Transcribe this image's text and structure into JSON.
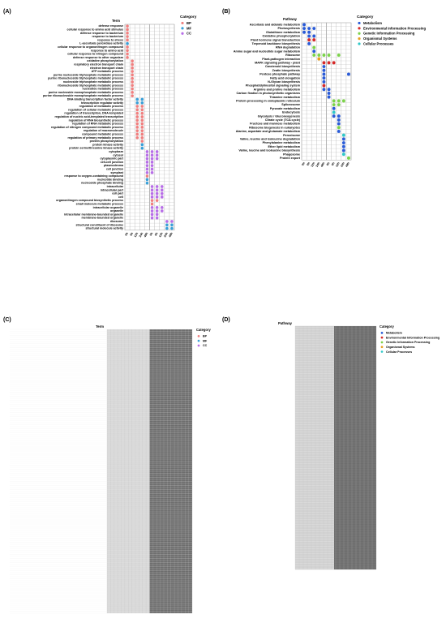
{
  "figure": {
    "panels": [
      "(A)",
      "(B)",
      "(C)",
      "(D)"
    ]
  },
  "legend_titles": {
    "A": "Category",
    "B": "Category",
    "C": "Category",
    "D": "Category"
  },
  "legend_A": [
    {
      "label": "BP",
      "color": "#f08080"
    },
    {
      "label": "MF",
      "color": "#3aa0d8"
    },
    {
      "label": "CC",
      "color": "#b86ee8"
    }
  ],
  "legend_B": [
    {
      "label": "Metabolism",
      "color": "#2a5bd7"
    },
    {
      "label": "Environmental Information Processing",
      "color": "#d62a2a"
    },
    {
      "label": "Genetic Information Processing",
      "color": "#7cd34a"
    },
    {
      "label": "Organismal Systems",
      "color": "#e8a020"
    },
    {
      "label": "Cellular Processes",
      "color": "#30c8c8"
    }
  ],
  "chart_data": [
    {
      "panel": "(A)",
      "type": "scatter",
      "title": "Term",
      "x_categories": [
        "0h",
        "6h",
        "12h",
        "24h",
        "48h",
        "0h",
        "6h",
        "12h",
        "24h",
        "48h"
      ],
      "y_categories": [
        "defense response",
        "cellular response to amino acid stimulus",
        "defense response to bacterium",
        "response to bacterium",
        "response to stress",
        "L-ascorbate peroxidase activity",
        "cellular response to organonitrogen compound",
        "response to amino acid",
        "cellular response to nitrogen compound",
        "defense response to other organism",
        "oxidative phosphorylation",
        "respiratory electron transport chain",
        "electron transport chain",
        "ATP metabolic process",
        "purine nucleoside triphosphate metabolic process",
        "purine ribonucleoside triphosphate metabolic process",
        "nucleoside triphosphate metabolic process",
        "ribonucleoside triphosphate metabolic process",
        "nucleotide metabolic process",
        "purine nucleoside monophosphate metabolic process",
        "purine ribonucleoside monophosphate metabolic process",
        "DNA-binding transcription factor activity",
        "transcription regulator activity",
        "regulation of metabolic process",
        "regulation of cellular metabolic process",
        "regulation of transcription, DNA-templated",
        "regulation of nucleic acid-templated transcription",
        "regulation of RNA biosynthetic process",
        "regulation of RNA metabolic process",
        "regulation of nitrogen compound metabolic process",
        "regulation of macromolecule",
        "compound metabolic process",
        "regulation of primary metabolic process",
        "protein phosphorylation",
        "protein kinase activity",
        "protein serine/threonine kinase activity",
        "cytoplasm",
        "cytosol",
        "cytoplasmic part",
        "cell-cell junction",
        "plasmodesma",
        "cell junction",
        "symplast",
        "response to oxygen-containing compound",
        "nucleotide binding",
        "nucleoside phosphate binding",
        "intracellular",
        "intracellular part",
        "cell part",
        "cell",
        "organonitrogen compound biosynthetic process",
        "small molecule metabolic process",
        "intracellular organelle",
        "organelle",
        "intracellular membrane-bounded organelle",
        "membrane-bounded organelle",
        "ribosome",
        "structural constituent of ribosome",
        "structural molecule activity"
      ],
      "legend": [
        "BP",
        "MF",
        "CC"
      ],
      "points": [
        [
          0,
          0,
          "BP"
        ],
        [
          0,
          1,
          "BP"
        ],
        [
          0,
          2,
          "BP"
        ],
        [
          0,
          3,
          "BP"
        ],
        [
          0,
          4,
          "BP"
        ],
        [
          0,
          5,
          "MF"
        ],
        [
          0,
          6,
          "BP"
        ],
        [
          0,
          7,
          "BP"
        ],
        [
          0,
          8,
          "BP"
        ],
        [
          0,
          9,
          "BP"
        ],
        [
          1,
          10,
          "BP"
        ],
        [
          1,
          11,
          "BP"
        ],
        [
          1,
          12,
          "BP"
        ],
        [
          1,
          13,
          "BP"
        ],
        [
          1,
          14,
          "BP"
        ],
        [
          1,
          15,
          "BP"
        ],
        [
          1,
          16,
          "BP"
        ],
        [
          1,
          17,
          "BP"
        ],
        [
          1,
          18,
          "BP"
        ],
        [
          1,
          19,
          "BP"
        ],
        [
          1,
          20,
          "BP"
        ],
        [
          2,
          21,
          "MF"
        ],
        [
          2,
          22,
          "MF"
        ],
        [
          3,
          21,
          "MF"
        ],
        [
          3,
          22,
          "MF"
        ],
        [
          2,
          23,
          "BP"
        ],
        [
          2,
          24,
          "BP"
        ],
        [
          2,
          25,
          "BP"
        ],
        [
          2,
          26,
          "BP"
        ],
        [
          2,
          27,
          "BP"
        ],
        [
          2,
          28,
          "BP"
        ],
        [
          2,
          29,
          "BP"
        ],
        [
          2,
          30,
          "BP"
        ],
        [
          2,
          31,
          "BP"
        ],
        [
          2,
          32,
          "BP"
        ],
        [
          3,
          23,
          "BP"
        ],
        [
          3,
          24,
          "BP"
        ],
        [
          3,
          25,
          "BP"
        ],
        [
          3,
          26,
          "BP"
        ],
        [
          3,
          27,
          "BP"
        ],
        [
          3,
          28,
          "BP"
        ],
        [
          3,
          29,
          "BP"
        ],
        [
          3,
          30,
          "BP"
        ],
        [
          3,
          31,
          "BP"
        ],
        [
          3,
          32,
          "BP"
        ],
        [
          3,
          33,
          "BP"
        ],
        [
          3,
          34,
          "MF"
        ],
        [
          3,
          35,
          "MF"
        ],
        [
          4,
          36,
          "CC"
        ],
        [
          4,
          37,
          "CC"
        ],
        [
          4,
          38,
          "CC"
        ],
        [
          4,
          39,
          "CC"
        ],
        [
          4,
          40,
          "CC"
        ],
        [
          4,
          41,
          "CC"
        ],
        [
          4,
          42,
          "CC"
        ],
        [
          4,
          43,
          "BP"
        ],
        [
          4,
          44,
          "MF"
        ],
        [
          4,
          45,
          "MF"
        ],
        [
          5,
          36,
          "CC"
        ],
        [
          5,
          37,
          "CC"
        ],
        [
          5,
          38,
          "CC"
        ],
        [
          5,
          39,
          "CC"
        ],
        [
          5,
          40,
          "CC"
        ],
        [
          5,
          41,
          "CC"
        ],
        [
          5,
          42,
          "CC"
        ],
        [
          6,
          36,
          "CC"
        ],
        [
          6,
          37,
          "CC"
        ],
        [
          6,
          38,
          "CC"
        ],
        [
          5,
          46,
          "CC"
        ],
        [
          5,
          47,
          "CC"
        ],
        [
          5,
          48,
          "CC"
        ],
        [
          5,
          49,
          "CC"
        ],
        [
          5,
          50,
          "BP"
        ],
        [
          5,
          51,
          "BP"
        ],
        [
          5,
          52,
          "CC"
        ],
        [
          5,
          53,
          "CC"
        ],
        [
          5,
          54,
          "CC"
        ],
        [
          5,
          55,
          "CC"
        ],
        [
          6,
          46,
          "CC"
        ],
        [
          6,
          47,
          "CC"
        ],
        [
          6,
          48,
          "CC"
        ],
        [
          6,
          49,
          "CC"
        ],
        [
          6,
          50,
          "BP"
        ],
        [
          6,
          52,
          "CC"
        ],
        [
          6,
          53,
          "CC"
        ],
        [
          6,
          54,
          "CC"
        ],
        [
          6,
          55,
          "CC"
        ],
        [
          7,
          46,
          "CC"
        ],
        [
          7,
          47,
          "CC"
        ],
        [
          7,
          48,
          "CC"
        ],
        [
          7,
          49,
          "CC"
        ],
        [
          7,
          52,
          "CC"
        ],
        [
          7,
          53,
          "CC"
        ],
        [
          8,
          56,
          "CC"
        ],
        [
          8,
          57,
          "MF"
        ],
        [
          8,
          58,
          "MF"
        ],
        [
          9,
          56,
          "CC"
        ],
        [
          9,
          57,
          "MF"
        ],
        [
          9,
          58,
          "MF"
        ]
      ]
    },
    {
      "panel": "(B)",
      "type": "scatter",
      "title": "Pathway",
      "x_categories": [
        "0h",
        "6h",
        "12h",
        "24h",
        "48h",
        "0h",
        "6h",
        "12h",
        "24h",
        "48h"
      ],
      "y_categories": [
        "Ascorbate and aldarate metabolism",
        "Photosynthesis",
        "Glutathione metabolism",
        "Oxidative phosphorylation",
        "Plant hormone signal transduction",
        "Terpenoid backbone biosynthesis",
        "RNA degradation",
        "Amino sugar and nucleotide sugar metabolism",
        "Ribosome",
        "Plant-pathogen interaction",
        "MAPK signaling pathway - plant",
        "Carotenoid biosynthesis",
        "Zeatin biosynthesis",
        "Pentose phosphate pathway",
        "Fatty acid elongation",
        "N-Glycan biosynthesis",
        "Phosphatidylinositol signaling system",
        "Arginine and proline metabolism",
        "Carbon fixation in photosynthetic organisms",
        "Thiamine metabolism",
        "Protein processing in endoplasmic reticulum",
        "Spliceosome",
        "Pyruvate metabolism",
        "Endocytosis",
        "Glycolysis / Gluconeogenesis",
        "Citrate cycle (TCA cycle)",
        "Fructose and mannose metabolism",
        "Ribosome biogenesis in eukaryotes",
        "Alanine, aspartate and glutamate metabolism",
        "Peroxisome",
        "Valine, leucine and isoleucine degradation",
        "Phenylalanine metabolism",
        "Ether lipid metabolism",
        "Valine, leucine and isoleucine biosynthesis",
        "Phagosome",
        "Protein export"
      ],
      "legend": [
        "Metabolism",
        "Environmental Information Processing",
        "Genetic Information Processing",
        "Organismal Systems",
        "Cellular Processes"
      ],
      "points": [
        [
          0,
          0,
          "Metabolism"
        ],
        [
          0,
          1,
          "Metabolism"
        ],
        [
          1,
          1,
          "Metabolism"
        ],
        [
          2,
          1,
          "Metabolism"
        ],
        [
          0,
          2,
          "Metabolism"
        ],
        [
          1,
          2,
          "Metabolism"
        ],
        [
          1,
          3,
          "Metabolism"
        ],
        [
          2,
          3,
          "Metabolism"
        ],
        [
          1,
          4,
          "Environmental Information Processing"
        ],
        [
          2,
          4,
          "Environmental Information Processing"
        ],
        [
          1,
          5,
          "Metabolism"
        ],
        [
          2,
          6,
          "Genetic Information Processing"
        ],
        [
          2,
          7,
          "Metabolism"
        ],
        [
          2,
          8,
          "Genetic Information Processing"
        ],
        [
          3,
          8,
          "Genetic Information Processing"
        ],
        [
          4,
          8,
          "Genetic Information Processing"
        ],
        [
          5,
          8,
          "Genetic Information Processing"
        ],
        [
          7,
          8,
          "Genetic Information Processing"
        ],
        [
          3,
          9,
          "Organismal Systems"
        ],
        [
          4,
          10,
          "Environmental Information Processing"
        ],
        [
          5,
          10,
          "Environmental Information Processing"
        ],
        [
          6,
          10,
          "Environmental Information Processing"
        ],
        [
          4,
          11,
          "Metabolism"
        ],
        [
          4,
          12,
          "Metabolism"
        ],
        [
          4,
          13,
          "Metabolism"
        ],
        [
          9,
          13,
          "Metabolism"
        ],
        [
          4,
          14,
          "Metabolism"
        ],
        [
          4,
          15,
          "Metabolism"
        ],
        [
          4,
          16,
          "Environmental Information Processing"
        ],
        [
          4,
          17,
          "Metabolism"
        ],
        [
          5,
          17,
          "Metabolism"
        ],
        [
          5,
          18,
          "Metabolism"
        ],
        [
          5,
          19,
          "Metabolism"
        ],
        [
          6,
          20,
          "Genetic Information Processing"
        ],
        [
          7,
          20,
          "Genetic Information Processing"
        ],
        [
          8,
          20,
          "Genetic Information Processing"
        ],
        [
          6,
          21,
          "Genetic Information Processing"
        ],
        [
          7,
          21,
          "Genetic Information Processing"
        ],
        [
          6,
          22,
          "Metabolism"
        ],
        [
          6,
          23,
          "Cellular Processes"
        ],
        [
          6,
          24,
          "Metabolism"
        ],
        [
          7,
          24,
          "Metabolism"
        ],
        [
          7,
          25,
          "Metabolism"
        ],
        [
          7,
          26,
          "Metabolism"
        ],
        [
          7,
          27,
          "Genetic Information Processing"
        ],
        [
          7,
          28,
          "Metabolism"
        ],
        [
          8,
          29,
          "Cellular Processes"
        ],
        [
          8,
          30,
          "Metabolism"
        ],
        [
          8,
          31,
          "Metabolism"
        ],
        [
          8,
          32,
          "Metabolism"
        ],
        [
          8,
          33,
          "Metabolism"
        ],
        [
          8,
          34,
          "Cellular Processes"
        ],
        [
          9,
          35,
          "Genetic Information Processing"
        ]
      ]
    },
    {
      "panel": "(C)",
      "type": "scatter",
      "title": "Term",
      "legend": [
        "BP",
        "MF",
        "CC"
      ],
      "x_categories": [],
      "y_categories": [],
      "points": []
    },
    {
      "panel": "(D)",
      "type": "scatter",
      "title": "Pathway",
      "legend": [
        "Metabolism",
        "Environmental Information Processing",
        "Genetic Information Processing",
        "Organismal Systems",
        "Cellular Processes"
      ],
      "x_categories": [],
      "y_categories": [],
      "points": []
    }
  ],
  "colors": {
    "BP": "#f08080",
    "MF": "#3aa0d8",
    "CC": "#b86ee8",
    "Metabolism": "#2a5bd7",
    "Environmental Information Processing": "#d62a2a",
    "Genetic Information Processing": "#7cd34a",
    "Organismal Systems": "#e8a020",
    "Cellular Processes": "#30c8c8",
    "grid_light": "#d9d9d9",
    "grid_dark": "#6e6e6e"
  }
}
